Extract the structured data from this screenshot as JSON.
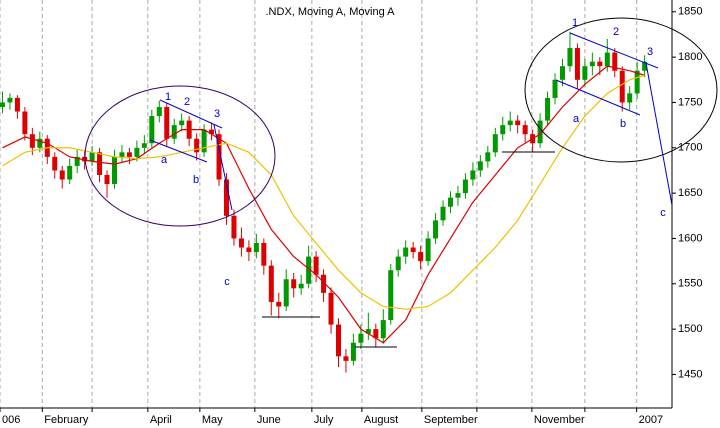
{
  "chart_data": {
    "type": "candlestick",
    "title": ".NDX, Moving A, Moving A",
    "up_color": "#009900",
    "down_color": "#dd0000",
    "xlim": [
      0,
      270
    ],
    "ylim": [
      1413,
      1863
    ],
    "yticks": [
      1450,
      1500,
      1550,
      1600,
      1650,
      1700,
      1750,
      1800,
      1850
    ],
    "xticks": [
      {
        "value": 0,
        "label": "006"
      },
      {
        "value": 17,
        "label": "February"
      },
      {
        "value": 37,
        "label": null
      },
      {
        "value": 59.4,
        "label": "April"
      },
      {
        "value": 80.3,
        "label": "May"
      },
      {
        "value": 102.4,
        "label": "June"
      },
      {
        "value": 125.3,
        "label": "July"
      },
      {
        "value": 145.4,
        "label": "August"
      },
      {
        "value": 169.5,
        "label": "September"
      },
      {
        "value": 191.6,
        "label": null
      },
      {
        "value": 213.7,
        "label": "November"
      },
      {
        "value": 235,
        "label": null
      },
      {
        "value": 255.8,
        "label": "2007"
      }
    ],
    "grid": true,
    "x": [
      1,
      4,
      7,
      10,
      13,
      16,
      19,
      22,
      25,
      28,
      31,
      34,
      37,
      40,
      43,
      46,
      49,
      52,
      55,
      58,
      61,
      64,
      67,
      70,
      73,
      76,
      79,
      82,
      85,
      88,
      91,
      94,
      97,
      100,
      103,
      106,
      109,
      112,
      115,
      118,
      121,
      124,
      127,
      130,
      133,
      136,
      139,
      142,
      145,
      148,
      151,
      154,
      157,
      160,
      163,
      166,
      169,
      172,
      175,
      178,
      181,
      184,
      187,
      190,
      193,
      196,
      199,
      202,
      205,
      208,
      211,
      214,
      217,
      220,
      223,
      226,
      229,
      232,
      235,
      238,
      241,
      244,
      247,
      250,
      253,
      256,
      259
    ],
    "ohlc": [
      [
        1745,
        1762,
        1738,
        1750
      ],
      [
        1750,
        1760,
        1742,
        1755
      ],
      [
        1755,
        1758,
        1732,
        1740
      ],
      [
        1740,
        1745,
        1708,
        1715
      ],
      [
        1715,
        1722,
        1692,
        1700
      ],
      [
        1700,
        1718,
        1695,
        1710
      ],
      [
        1710,
        1714,
        1682,
        1690
      ],
      [
        1690,
        1695,
        1666,
        1675
      ],
      [
        1675,
        1680,
        1655,
        1665
      ],
      [
        1665,
        1688,
        1660,
        1680
      ],
      [
        1680,
        1698,
        1672,
        1690
      ],
      [
        1690,
        1696,
        1676,
        1685
      ],
      [
        1685,
        1702,
        1680,
        1695
      ],
      [
        1695,
        1700,
        1662,
        1670
      ],
      [
        1670,
        1675,
        1645,
        1660
      ],
      [
        1660,
        1698,
        1655,
        1690
      ],
      [
        1690,
        1703,
        1684,
        1695
      ],
      [
        1695,
        1700,
        1682,
        1690
      ],
      [
        1690,
        1708,
        1685,
        1700
      ],
      [
        1700,
        1714,
        1694,
        1705
      ],
      [
        1705,
        1742,
        1700,
        1735
      ],
      [
        1735,
        1752,
        1728,
        1745
      ],
      [
        1745,
        1750,
        1702,
        1710
      ],
      [
        1710,
        1732,
        1704,
        1725
      ],
      [
        1725,
        1738,
        1718,
        1730
      ],
      [
        1730,
        1735,
        1702,
        1710
      ],
      [
        1710,
        1716,
        1686,
        1695
      ],
      [
        1695,
        1726,
        1690,
        1720
      ],
      [
        1720,
        1728,
        1708,
        1715
      ],
      [
        1715,
        1720,
        1658,
        1665
      ],
      [
        1665,
        1672,
        1615,
        1625
      ],
      [
        1625,
        1632,
        1592,
        1600
      ],
      [
        1600,
        1612,
        1580,
        1590
      ],
      [
        1590,
        1598,
        1575,
        1585
      ],
      [
        1585,
        1605,
        1578,
        1595
      ],
      [
        1595,
        1600,
        1560,
        1570
      ],
      [
        1570,
        1576,
        1515,
        1530
      ],
      [
        1530,
        1540,
        1512,
        1525
      ],
      [
        1525,
        1566,
        1520,
        1555
      ],
      [
        1555,
        1562,
        1535,
        1545
      ],
      [
        1545,
        1560,
        1538,
        1550
      ],
      [
        1550,
        1592,
        1545,
        1580
      ],
      [
        1580,
        1586,
        1552,
        1560
      ],
      [
        1560,
        1566,
        1530,
        1540
      ],
      [
        1540,
        1546,
        1495,
        1505
      ],
      [
        1505,
        1512,
        1458,
        1470
      ],
      [
        1470,
        1478,
        1452,
        1465
      ],
      [
        1465,
        1495,
        1460,
        1485
      ],
      [
        1485,
        1505,
        1478,
        1495
      ],
      [
        1495,
        1518,
        1488,
        1500
      ],
      [
        1500,
        1506,
        1480,
        1490
      ],
      [
        1490,
        1522,
        1484,
        1510
      ],
      [
        1510,
        1572,
        1505,
        1565
      ],
      [
        1565,
        1588,
        1558,
        1580
      ],
      [
        1580,
        1598,
        1572,
        1590
      ],
      [
        1590,
        1596,
        1578,
        1585
      ],
      [
        1585,
        1592,
        1566,
        1575
      ],
      [
        1575,
        1608,
        1570,
        1600
      ],
      [
        1600,
        1628,
        1594,
        1620
      ],
      [
        1620,
        1642,
        1614,
        1635
      ],
      [
        1635,
        1652,
        1628,
        1645
      ],
      [
        1645,
        1658,
        1636,
        1650
      ],
      [
        1650,
        1672,
        1644,
        1665
      ],
      [
        1665,
        1684,
        1658,
        1675
      ],
      [
        1675,
        1692,
        1668,
        1685
      ],
      [
        1685,
        1702,
        1678,
        1695
      ],
      [
        1695,
        1722,
        1690,
        1715
      ],
      [
        1715,
        1734,
        1708,
        1725
      ],
      [
        1725,
        1740,
        1718,
        1730
      ],
      [
        1730,
        1736,
        1716,
        1725
      ],
      [
        1725,
        1730,
        1706,
        1715
      ],
      [
        1715,
        1720,
        1695,
        1705
      ],
      [
        1705,
        1738,
        1700,
        1730
      ],
      [
        1730,
        1762,
        1724,
        1755
      ],
      [
        1755,
        1782,
        1748,
        1775
      ],
      [
        1775,
        1798,
        1768,
        1790
      ],
      [
        1790,
        1828,
        1784,
        1810
      ],
      [
        1810,
        1815,
        1765,
        1775
      ],
      [
        1775,
        1798,
        1768,
        1790
      ],
      [
        1790,
        1805,
        1780,
        1795
      ],
      [
        1795,
        1800,
        1780,
        1790
      ],
      [
        1790,
        1820,
        1784,
        1805
      ],
      [
        1805,
        1810,
        1778,
        1785
      ],
      [
        1785,
        1790,
        1740,
        1750
      ],
      [
        1750,
        1768,
        1742,
        1760
      ],
      [
        1760,
        1795,
        1754,
        1785
      ],
      [
        1785,
        1802,
        1778,
        1795
      ]
    ],
    "moving_averages": [
      {
        "color": "#dd0000",
        "x": [
          1,
          10,
          19,
          28,
          37,
          46,
          55,
          64,
          73,
          82,
          91,
          100,
          109,
          118,
          127,
          136,
          145,
          154,
          163,
          172,
          181,
          190,
          199,
          208,
          217,
          226,
          235,
          244,
          253,
          259
        ],
        "values": [
          1700,
          1712,
          1705,
          1690,
          1685,
          1682,
          1688,
          1705,
          1720,
          1720,
          1705,
          1655,
          1610,
          1580,
          1560,
          1535,
          1500,
          1485,
          1510,
          1560,
          1600,
          1640,
          1670,
          1700,
          1715,
          1745,
          1770,
          1790,
          1785,
          1780
        ]
      },
      {
        "color": "#f0c000",
        "x": [
          1,
          10,
          19,
          28,
          37,
          46,
          55,
          64,
          73,
          82,
          91,
          100,
          109,
          118,
          127,
          136,
          145,
          154,
          163,
          172,
          181,
          190,
          199,
          208,
          217,
          226,
          235,
          244,
          253,
          259
        ],
        "values": [
          1680,
          1695,
          1700,
          1700,
          1695,
          1690,
          1688,
          1690,
          1695,
          1700,
          1705,
          1695,
          1670,
          1625,
          1595,
          1565,
          1540,
          1525,
          1522,
          1525,
          1540,
          1565,
          1590,
          1620,
          1660,
          1700,
          1735,
          1760,
          1775,
          1780
        ]
      }
    ],
    "annotations": [
      "1",
      "2",
      "3",
      "a",
      "b",
      "c",
      "1",
      "2",
      "3",
      "a",
      "b",
      "c"
    ]
  }
}
